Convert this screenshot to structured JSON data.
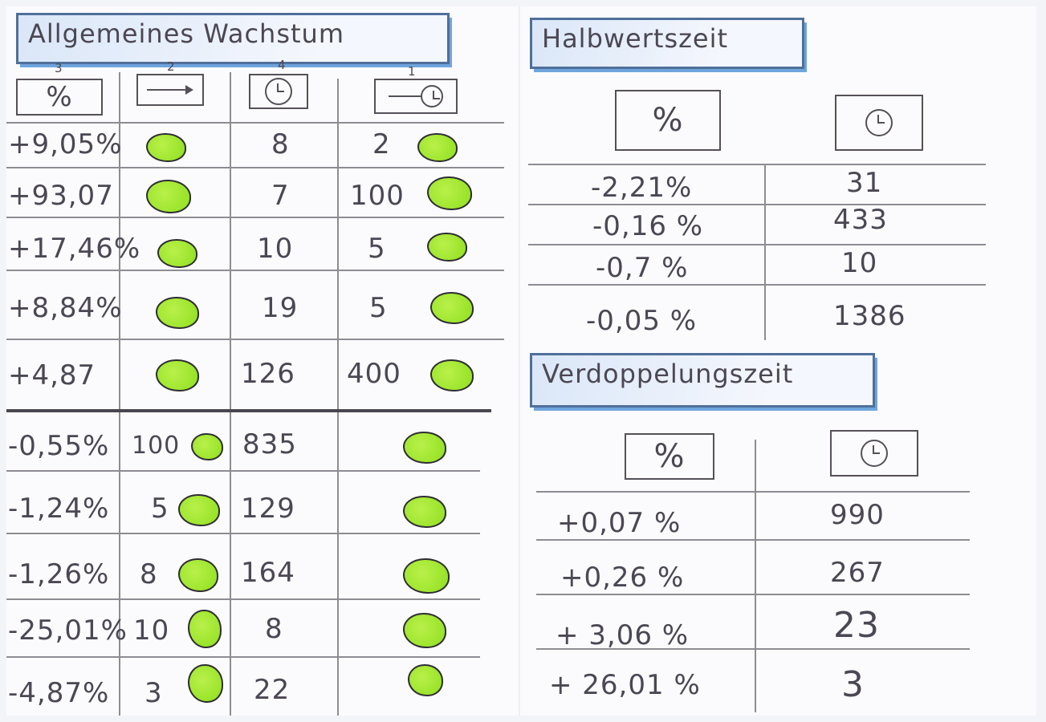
{
  "left_section": {
    "title": "Allgemeines Wachstum",
    "column_index_marks": [
      "3",
      "2",
      "4",
      "1"
    ],
    "header_icons": [
      "percent-icon",
      "arrow-icon",
      "clock-icon",
      "arrow-clock-icon"
    ],
    "header_percent": "%",
    "rows": [
      {
        "percent": "+9,05%",
        "start": "",
        "time": "8",
        "amount": "2"
      },
      {
        "percent": "+93,07",
        "start": "",
        "time": "7",
        "amount": "100"
      },
      {
        "percent": "+17,46%",
        "start": "",
        "time": "10",
        "amount": "5"
      },
      {
        "percent": "+8,84%",
        "start": "",
        "time": "19",
        "amount": "5"
      },
      {
        "percent": "+4,87",
        "start": "",
        "time": "126",
        "amount": "400"
      },
      {
        "percent": "-0,55%",
        "start": "100",
        "time": "835",
        "amount": ""
      },
      {
        "percent": "-1,24%",
        "start": "5",
        "time": "129",
        "amount": ""
      },
      {
        "percent": "-1,26%",
        "start": "8",
        "time": "164",
        "amount": ""
      },
      {
        "percent": "-25,01%",
        "start": "10",
        "time": "8",
        "amount": ""
      },
      {
        "percent": "-4,87%",
        "start": "3",
        "time": "22",
        "amount": ""
      }
    ]
  },
  "halbwertszeit": {
    "title": "Halbwertszeit",
    "header_percent": "%",
    "rows": [
      {
        "percent": "-2,21%",
        "time": "31"
      },
      {
        "percent": "-0,16 %",
        "time": "433"
      },
      {
        "percent": "-0,7 %",
        "time": "10"
      },
      {
        "percent": "-0,05 %",
        "time": "1386"
      }
    ]
  },
  "verdopplungszeit": {
    "title": "Verdoppelungszeit",
    "header_percent": "%",
    "rows": [
      {
        "percent": "+0,07 %",
        "time": "990"
      },
      {
        "percent": "+0,26 %",
        "time": "267"
      },
      {
        "percent": "+ 3,06 %",
        "time": "23"
      },
      {
        "percent": "+ 26,01 %",
        "time": "3"
      }
    ]
  },
  "colors": {
    "paper": "#fbfbfe",
    "ink": "#4b4753",
    "title_blue": "#6fa5dc",
    "blob_green": "#9be52a"
  }
}
